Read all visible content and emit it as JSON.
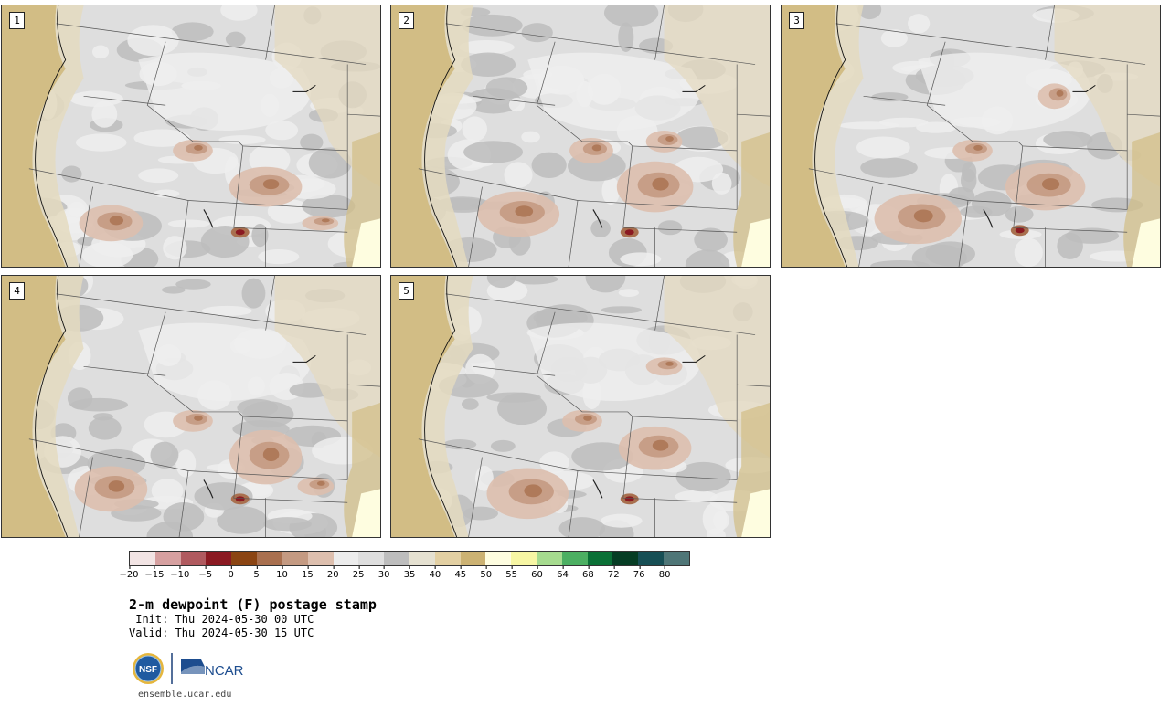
{
  "panels": [
    {
      "label": "1"
    },
    {
      "label": "2"
    },
    {
      "label": "3"
    },
    {
      "label": "4"
    },
    {
      "label": "5"
    }
  ],
  "colorbar": {
    "colors": [
      "#f2e4e4",
      "#d6a0a0",
      "#b05a5f",
      "#8b1a22",
      "#8b4513",
      "#a9704f",
      "#c49a82",
      "#ddbfae",
      "#ececec",
      "#dedede",
      "#bdbdbd",
      "#e5e1d1",
      "#e3d0a3",
      "#ccb273",
      "#fefde0",
      "#f7f6a4",
      "#a6db8f",
      "#4caf62",
      "#0a7036",
      "#063d24",
      "#174f55",
      "#4f7677"
    ],
    "tick_labels": [
      "−20",
      "−15",
      "−10",
      "−5",
      "0",
      "5",
      "10",
      "15",
      "20",
      "25",
      "30",
      "35",
      "40",
      "45",
      "50",
      "55",
      "60",
      "64",
      "68",
      "72",
      "76",
      "80"
    ]
  },
  "title": "2-m dewpoint (F) postage stamp",
  "init": " Init: Thu 2024-05-30 00 UTC",
  "valid": "Valid: Thu 2024-05-30 15 UTC",
  "logos": {
    "nsf": "NSF",
    "ncar": "NCAR"
  },
  "site": "ensemble.ucar.edu",
  "map_colors": {
    "ocean_tan": "#d2bd85",
    "light_tan": "#e4dac0",
    "gray": "#bdbdbd",
    "light_gray": "#dedede",
    "pale": "#efefef",
    "brown_light": "#ddbfae",
    "brown": "#c49a82",
    "brown_dark": "#a9704f",
    "red_dark": "#8b1a22",
    "yellow_pale": "#fefde0"
  }
}
